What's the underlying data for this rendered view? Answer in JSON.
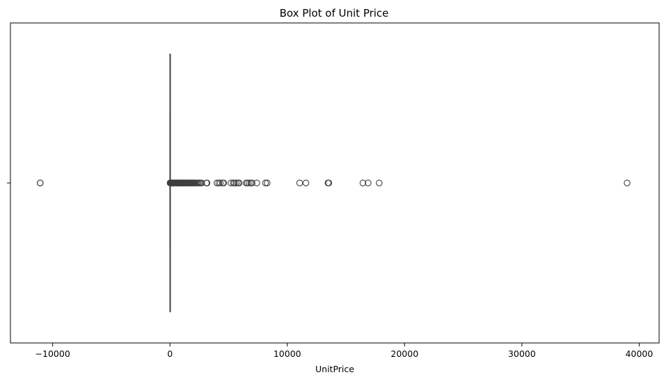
{
  "chart_data": {
    "type": "box",
    "title": "Box Plot of Unit Price",
    "xlabel": "UnitPrice",
    "ylabel": "",
    "xlim": [
      -13600,
      41700
    ],
    "xticks": [
      -10000,
      0,
      10000,
      20000,
      30000,
      40000
    ],
    "xtick_labels": [
      "−10000",
      "0",
      "10000",
      "20000",
      "30000",
      "40000"
    ],
    "yticks": [
      ""
    ],
    "orientation": "horizontal",
    "box": {
      "q1": 1.25,
      "median": 2.08,
      "q3": 4.13,
      "whisker_low": 0.0,
      "whisker_high": 8.45
    },
    "outliers": [
      -11062.06,
      -11062.06,
      10,
      30,
      60,
      90,
      120,
      150,
      180,
      220,
      260,
      300,
      350,
      400,
      450,
      500,
      550,
      600,
      650,
      700,
      750,
      800,
      850,
      900,
      950,
      1000,
      1050,
      1100,
      1150,
      1200,
      1250,
      1300,
      1350,
      1400,
      1450,
      1500,
      1550,
      1600,
      1650,
      1700,
      1750,
      1800,
      1850,
      1900,
      1950,
      2000,
      2050,
      2100,
      2200,
      2300,
      2400,
      2500,
      2600,
      2700,
      3100,
      3155,
      4000,
      4160,
      4290,
      4500,
      4580,
      5200,
      5400,
      5500,
      5650,
      5800,
      5900,
      6500,
      6600,
      6750,
      6900,
      7000,
      7400,
      8140,
      8285,
      11060,
      11590,
      13470,
      13540,
      16450,
      16890,
      17836,
      38970
    ],
    "colors": {
      "line": "#3f3f3f",
      "axis": "#000000",
      "outlier_edge": "#3f3f3f"
    }
  }
}
